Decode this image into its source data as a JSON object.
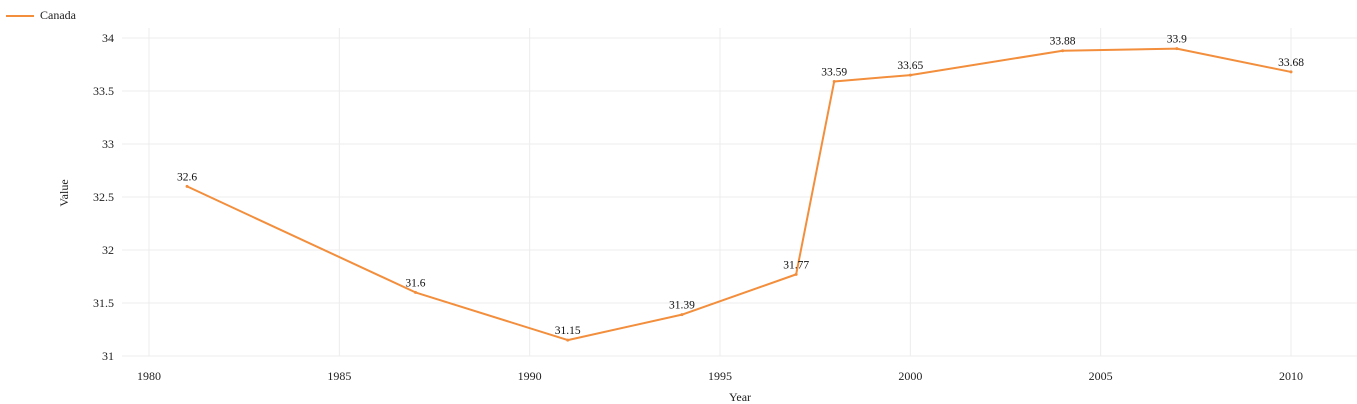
{
  "chart_data": {
    "type": "line",
    "title": "",
    "xlabel": "Year",
    "ylabel": "Value",
    "xlim": [
      1979,
      2011.5
    ],
    "ylim": [
      31,
      34.1
    ],
    "x_ticks": [
      1980,
      1985,
      1990,
      1995,
      2000,
      2005,
      2010
    ],
    "y_ticks": [
      31,
      31.5,
      32,
      32.5,
      33,
      33.5,
      34
    ],
    "grid": true,
    "legend_position": "top-left",
    "series": [
      {
        "name": "Canada",
        "color": "#f28e3c",
        "x": [
          1981,
          1987,
          1991,
          1994,
          1997,
          1998,
          2000,
          2004,
          2007,
          2010
        ],
        "values": [
          32.6,
          31.6,
          31.15,
          31.39,
          31.77,
          33.59,
          33.65,
          33.88,
          33.9,
          33.68
        ],
        "labels": [
          "32.6",
          "31.6",
          "31.15",
          "31.39",
          "31.77",
          "33.59",
          "33.65",
          "33.88",
          "33.9",
          "33.68"
        ]
      }
    ]
  }
}
